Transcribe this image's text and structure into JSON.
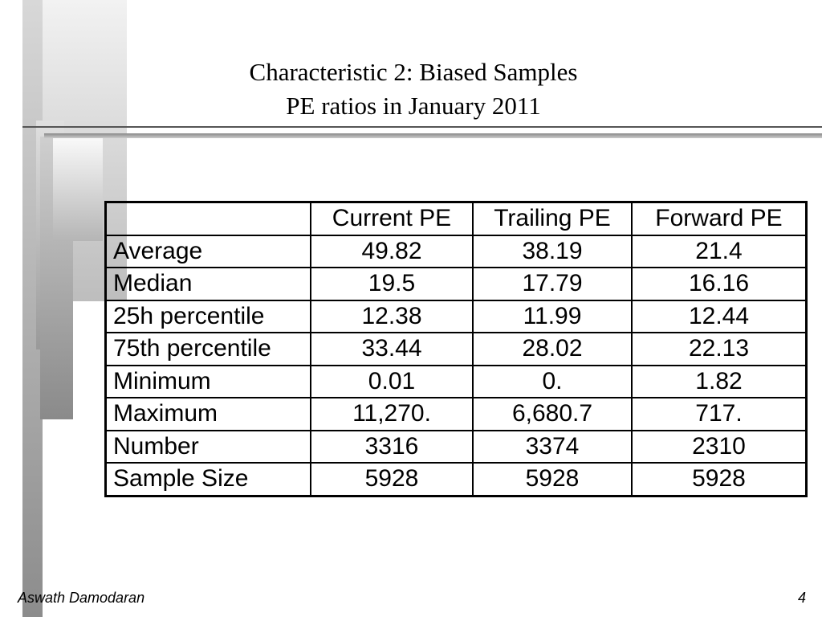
{
  "header": {
    "title": "Characteristic 2: Biased Samples",
    "subtitle": "PE ratios in January 2011"
  },
  "table": {
    "columns": [
      "Current PE",
      "Trailing PE",
      "Forward PE"
    ],
    "rows": [
      {
        "label": "Average",
        "cells": [
          "49.82",
          "38.19",
          "21.4"
        ]
      },
      {
        "label": "Median",
        "cells": [
          "19.5",
          "17.79",
          "16.16"
        ]
      },
      {
        "label": "25h percentile",
        "cells": [
          "12.38",
          "11.99",
          "12.44"
        ]
      },
      {
        "label": "75th percentile",
        "cells": [
          "33.44",
          "28.02",
          "22.13"
        ]
      },
      {
        "label": "Minimum",
        "cells": [
          "0.01",
          "0.",
          "1.82"
        ]
      },
      {
        "label": "Maximum",
        "cells": [
          "11,270.",
          "6,680.7",
          "717."
        ]
      },
      {
        "label": "Number",
        "cells": [
          "3316",
          "3374",
          "2310"
        ]
      },
      {
        "label": "Sample Size",
        "cells": [
          "5928",
          "5928",
          "5928"
        ]
      }
    ]
  },
  "footer": {
    "author": "Aswath Damodaran",
    "page": "4"
  }
}
